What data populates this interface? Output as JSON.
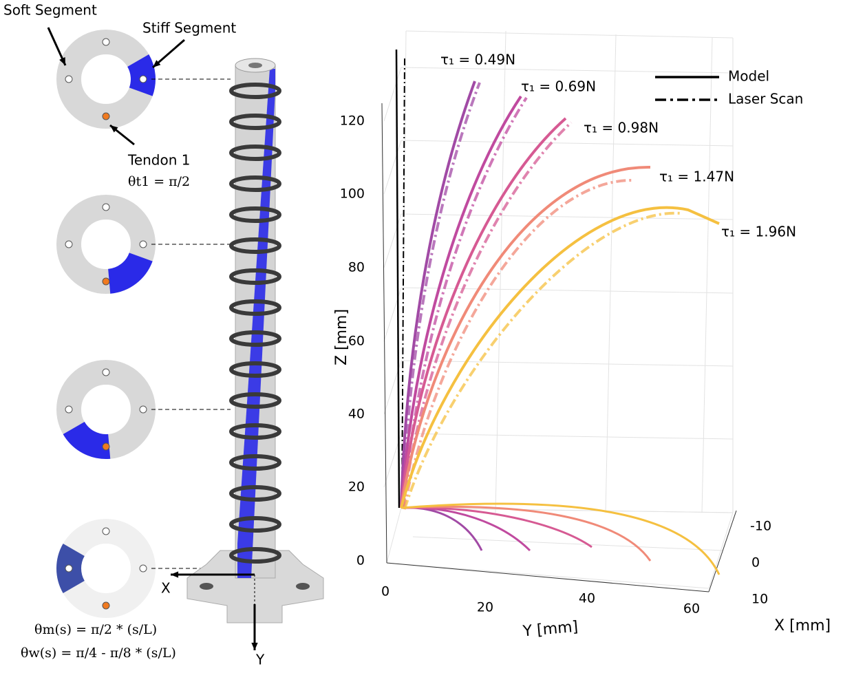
{
  "schematic": {
    "soft_segment": "Soft Segment",
    "stiff_segment": "Stiff Segment",
    "tendon": "Tendon 1",
    "tendon_angle": "θt1 = π/2",
    "x_arrow": "X",
    "y_arrow": "Y",
    "theta_m": "θm(s) = π/2 * (s/L)",
    "theta_w": "θw(s) = π/4 - π/8 * (s/L)"
  },
  "plot": {
    "z_axis_title": "Z [mm]",
    "y_axis_title": "Y [mm]",
    "x_axis_title": "X [mm]",
    "z_ticks": [
      "0",
      "20",
      "40",
      "60",
      "80",
      "100",
      "120"
    ],
    "y_ticks": [
      "0",
      "20",
      "40",
      "60"
    ],
    "x_ticks": [
      "-10",
      "0",
      "10"
    ],
    "legend": [
      "Model",
      "Laser Scan"
    ],
    "curve_labels": [
      "τ₁ = 0.49N",
      "τ₁ = 0.69N",
      "τ₁ = 0.98N",
      "τ₁ = 1.47N",
      "τ₁ = 1.96N"
    ]
  }
}
